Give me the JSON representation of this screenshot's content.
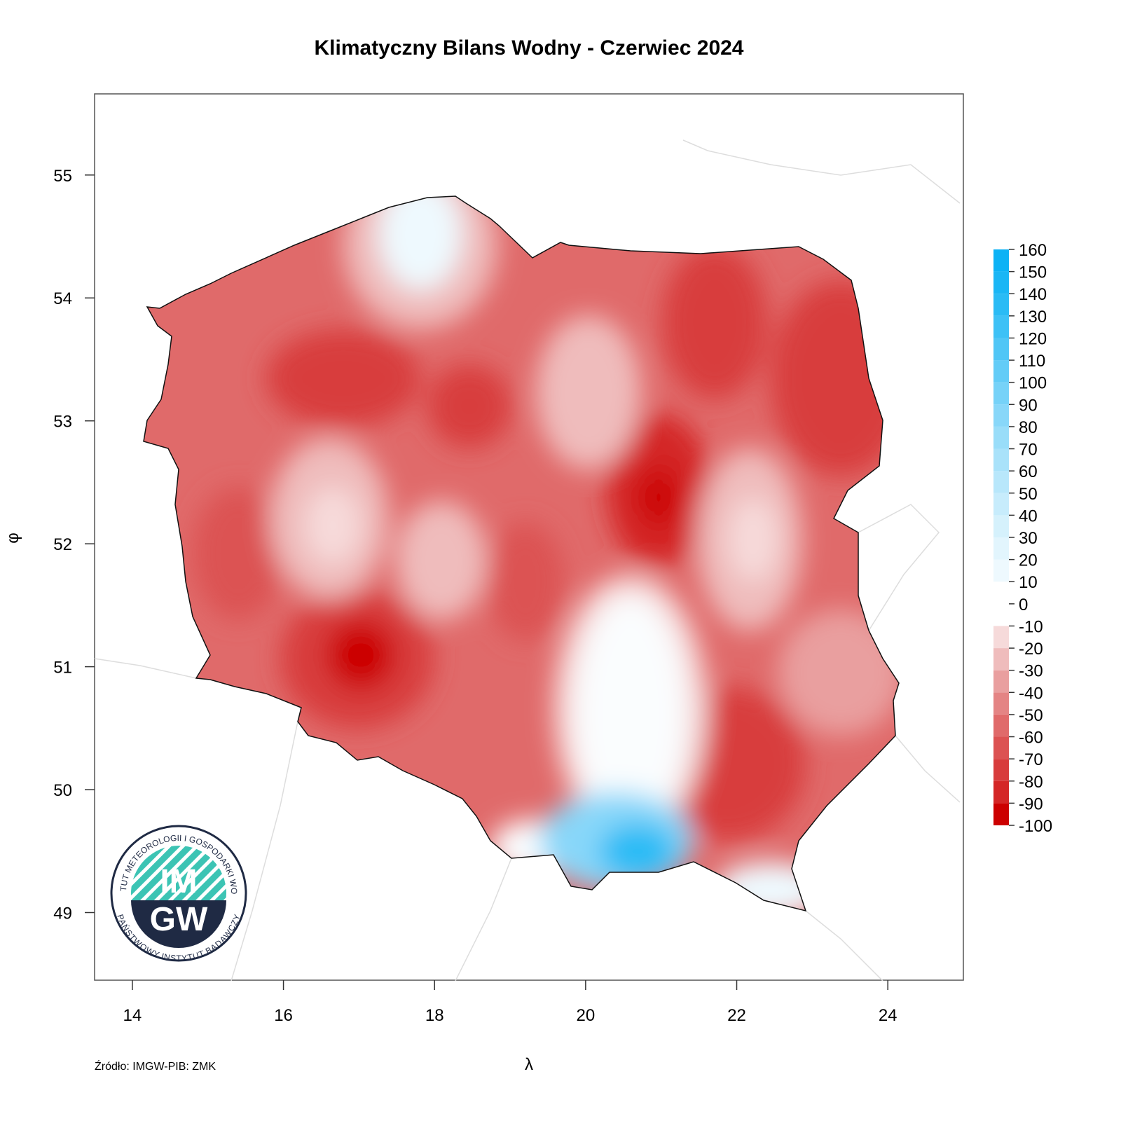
{
  "chart_data": {
    "type": "map",
    "title": "Klimatyczny Bilans Wodny - Czerwiec 2024",
    "x_label": "λ",
    "y_label": "φ",
    "source": "Źródło: IMGW-PIB: ZMK",
    "xlim": [
      13.5,
      25
    ],
    "xticks": [
      14,
      16,
      18,
      20,
      22,
      24
    ],
    "ylim": [
      48.45,
      55.66
    ],
    "yticks": [
      49,
      50,
      51,
      52,
      53,
      54,
      55
    ],
    "colorbar": {
      "levels": [
        -100,
        -90,
        -80,
        -70,
        -60,
        -50,
        -40,
        -30,
        -20,
        -10,
        0,
        10,
        20,
        30,
        40,
        50,
        60,
        70,
        80,
        90,
        100,
        110,
        120,
        130,
        140,
        150,
        160
      ],
      "colors": [
        "#cc0000",
        "#d42626",
        "#d83c3c",
        "#dc5252",
        "#e06a6a",
        "#e48484",
        "#e99f9f",
        "#efbcbc",
        "#f6dada",
        "#ffffff",
        "#ffffff",
        "#eef9fe",
        "#e2f5fd",
        "#d5f1fc",
        "#c7ecfc",
        "#b8e7fb",
        "#a9e2fa",
        "#99ddf9",
        "#88d7f9",
        "#76d2f8",
        "#63ccf7",
        "#50c6f6",
        "#3dc1f6",
        "#2abbf5",
        "#1ab6f5",
        "#0cb2f5"
      ]
    },
    "logo": {
      "top_text": "INSTYTUT METEOROLOGII I GOSPODARKI WODNEJ",
      "bottom_text": "PAŃSTWOWY INSTYTUT BADAWCZY",
      "line1": "IM",
      "line2": "GW"
    }
  }
}
